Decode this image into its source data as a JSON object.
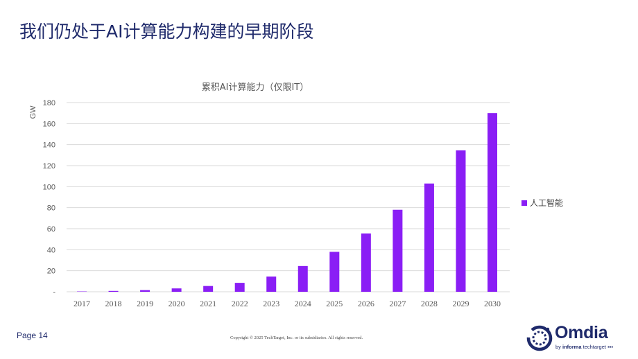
{
  "slide": {
    "title": "我们仍处于AI计算能力构建的早期阶段",
    "page_label": "Page 14",
    "copyright": "Copyright © 2025 TechTarget, Inc. or its subsidiaries. All rights reserved.",
    "logo": {
      "wordmark": "Omdia",
      "tagline_prefix": "by ",
      "tagline_brand": "informa",
      "tagline_suffix": " techtarget"
    }
  },
  "colors": {
    "title": "#1f2a6b",
    "bar": "#8a1ef5",
    "grid": "#d9d9d9",
    "axis_text": "#595959"
  },
  "chart_data": {
    "type": "bar",
    "title": "累积AI计算能力（仅限IT）",
    "ylabel": "GW",
    "xlabel": "",
    "categories": [
      "2017",
      "2018",
      "2019",
      "2020",
      "2021",
      "2022",
      "2023",
      "2024",
      "2025",
      "2026",
      "2027",
      "2028",
      "2029",
      "2030"
    ],
    "series": [
      {
        "name": "人工智能",
        "values": [
          0.3,
          0.8,
          1.6,
          3.2,
          5.5,
          8.5,
          14.5,
          24.5,
          38,
          55.5,
          78,
          103,
          134.5,
          170
        ]
      }
    ],
    "ylim": [
      0,
      180
    ],
    "yticks": [
      0,
      20,
      40,
      60,
      80,
      100,
      120,
      140,
      160,
      180
    ],
    "ytick_labels": [
      "-",
      "20",
      "40",
      "60",
      "80",
      "100",
      "120",
      "140",
      "160",
      "180"
    ],
    "grid": true,
    "legend_position": "right"
  }
}
